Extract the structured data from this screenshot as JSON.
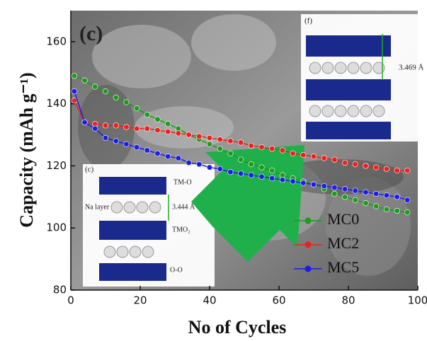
{
  "chart_data": {
    "type": "line",
    "x_label": "No of Cycles",
    "y_label": "Capacity (mAh g⁻¹)",
    "x": [
      1,
      4,
      7,
      10,
      13,
      16,
      19,
      22,
      25,
      28,
      31,
      34,
      37,
      40,
      43,
      46,
      49,
      52,
      55,
      58,
      61,
      64,
      67,
      70,
      73,
      76,
      79,
      82,
      85,
      88,
      91,
      94,
      97
    ],
    "series": [
      {
        "name": "MC0",
        "color": "#1e9b1e",
        "values": [
          149,
          147.5,
          145.5,
          144,
          142,
          140.5,
          138.5,
          136.5,
          135,
          133.5,
          132,
          130,
          128.5,
          127,
          125.5,
          124,
          122,
          120.5,
          119.5,
          118.5,
          117,
          116,
          115,
          114,
          112.5,
          111,
          110,
          109,
          108,
          107,
          106,
          105.5,
          105
        ]
      },
      {
        "name": "MC2",
        "color": "#e8231e",
        "values": [
          141,
          134,
          133.5,
          133,
          133,
          132.5,
          132,
          132,
          131.5,
          131,
          130.5,
          130,
          129.5,
          129,
          128.5,
          128,
          127.5,
          126.5,
          126,
          125.5,
          125,
          124,
          123.5,
          123,
          122.5,
          122,
          121,
          120.5,
          120,
          119.5,
          119,
          118.5,
          118.5
        ]
      },
      {
        "name": "MC5",
        "color": "#1c1ee6",
        "values": [
          144,
          134,
          132,
          129,
          128,
          127,
          126,
          125,
          124,
          123,
          122.5,
          121,
          120.5,
          119.5,
          119,
          118,
          117.5,
          117,
          116.5,
          116,
          115.5,
          115,
          114.5,
          114,
          113.5,
          113,
          112.5,
          112,
          111.5,
          111,
          110.5,
          110,
          109
        ]
      }
    ],
    "xlim": [
      0,
      100
    ],
    "xticks": [
      0,
      20,
      40,
      60,
      80,
      100
    ],
    "ylim": [
      80,
      170
    ],
    "yticks": [
      80,
      100,
      120,
      140,
      160
    ],
    "annotations": [
      {
        "text": "(c)"
      },
      {
        "text": "(f)"
      },
      {
        "text": "3.469 Å"
      },
      {
        "text": "(c)"
      },
      {
        "text": "TM-O"
      },
      {
        "text": "Na layer"
      },
      {
        "text": "3.444 Å"
      },
      {
        "text": "TMO₂"
      },
      {
        "text": "O-O"
      }
    ]
  }
}
